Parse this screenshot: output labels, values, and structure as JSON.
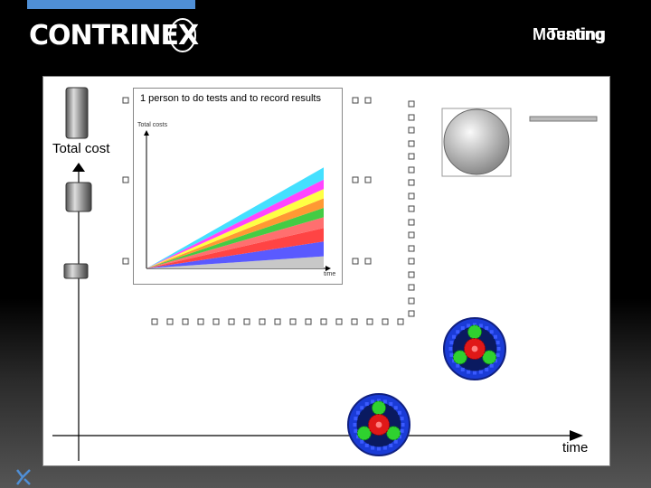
{
  "header": {
    "brand": "CONTRINEX",
    "title_overlap_a": "Mounting",
    "title_overlap_b": "Testing"
  },
  "inset": {
    "caption": "1 person to do tests and to record results",
    "ylabel": "Total costs",
    "xlabel": "time"
  },
  "main_axes": {
    "ylabel": "Total cost",
    "xlabel": "time"
  },
  "colors": {
    "topbar": "#4f8fd6",
    "slide_bg": "#ffffff",
    "gear_ring": "#1a3bd6",
    "gear_center": "#e01818",
    "gear_small": "#2fd12f"
  },
  "chart_data": {
    "type": "area",
    "title": "1 person to do tests and to record results",
    "ylabel": "Total costs",
    "xlabel": "time",
    "x": [
      0,
      1
    ],
    "stacked": true,
    "series": [
      {
        "color": "#c8c8c8",
        "values": [
          0,
          0.09
        ]
      },
      {
        "color": "#5a5aff",
        "values": [
          0,
          0.11
        ]
      },
      {
        "color": "#ff4444",
        "values": [
          0,
          0.1
        ]
      },
      {
        "color": "#ff6f6f",
        "values": [
          0,
          0.08
        ]
      },
      {
        "color": "#44cc44",
        "values": [
          0,
          0.07
        ]
      },
      {
        "color": "#ff9933",
        "values": [
          0,
          0.07
        ]
      },
      {
        "color": "#ffff44",
        "values": [
          0,
          0.07
        ]
      },
      {
        "color": "#ff44ff",
        "values": [
          0,
          0.07
        ]
      },
      {
        "color": "#44e0ff",
        "values": [
          0,
          0.09
        ]
      }
    ]
  }
}
